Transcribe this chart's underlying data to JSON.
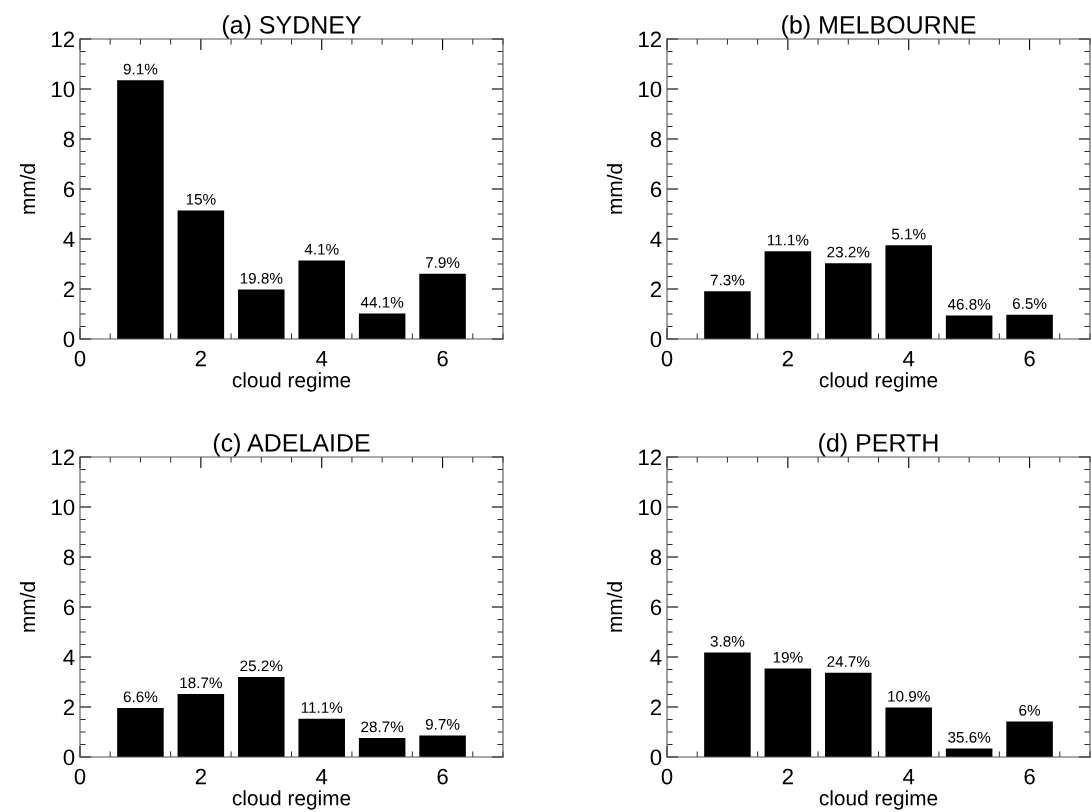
{
  "chart_data": [
    {
      "type": "bar",
      "title": "(a) SYDNEY",
      "xlabel": "cloud regime",
      "ylabel": "mm/d",
      "x": [
        1,
        2,
        3,
        4,
        5,
        6
      ],
      "xlim": [
        0,
        7
      ],
      "xticks": [
        0,
        2,
        4,
        6
      ],
      "ylim": [
        0,
        12
      ],
      "yticks": [
        0,
        2,
        4,
        6,
        8,
        10,
        12
      ],
      "color": "#000000",
      "grid": false,
      "legend": false,
      "values": [
        10.35,
        5.14,
        1.98,
        3.14,
        1.02,
        2.61
      ],
      "annotations": [
        {
          "text": "9.1%",
          "x": 1,
          "y": 10.35
        },
        {
          "text": "15%",
          "x": 2,
          "y": 5.14
        },
        {
          "text": "19.8%",
          "x": 3,
          "y": 1.98
        },
        {
          "text": "4.1%",
          "x": 4,
          "y": 3.14
        },
        {
          "text": "44.1%",
          "x": 5,
          "y": 1.02
        },
        {
          "text": "7.9%",
          "x": 6,
          "y": 2.61
        }
      ]
    },
    {
      "type": "bar",
      "title": "(b) MELBOURNE",
      "xlabel": "cloud regime",
      "ylabel": "mm/d",
      "x": [
        1,
        2,
        3,
        4,
        5,
        6
      ],
      "xlim": [
        0,
        7
      ],
      "xticks": [
        0,
        2,
        4,
        6
      ],
      "ylim": [
        0,
        12
      ],
      "yticks": [
        0,
        2,
        4,
        6,
        8,
        10,
        12
      ],
      "color": "#000000",
      "grid": false,
      "legend": false,
      "values": [
        1.91,
        3.51,
        3.03,
        3.75,
        0.94,
        0.97
      ],
      "annotations": [
        {
          "text": "7.3%",
          "x": 1,
          "y": 1.91
        },
        {
          "text": "11.1%",
          "x": 2,
          "y": 3.51
        },
        {
          "text": "23.2%",
          "x": 3,
          "y": 3.03
        },
        {
          "text": "5.1%",
          "x": 4,
          "y": 3.75
        },
        {
          "text": "46.8%",
          "x": 5,
          "y": 0.94
        },
        {
          "text": "6.5%",
          "x": 6,
          "y": 0.97
        }
      ]
    },
    {
      "type": "bar",
      "title": "(c) ADELAIDE",
      "xlabel": "cloud regime",
      "ylabel": "mm/d",
      "x": [
        1,
        2,
        3,
        4,
        5,
        6
      ],
      "xlim": [
        0,
        7
      ],
      "xticks": [
        0,
        2,
        4,
        6
      ],
      "ylim": [
        0,
        12
      ],
      "yticks": [
        0,
        2,
        4,
        6,
        8,
        10,
        12
      ],
      "color": "#000000",
      "grid": false,
      "legend": false,
      "values": [
        1.96,
        2.52,
        3.2,
        1.53,
        0.76,
        0.86
      ],
      "annotations": [
        {
          "text": "6.6%",
          "x": 1,
          "y": 1.96
        },
        {
          "text": "18.7%",
          "x": 2,
          "y": 2.52
        },
        {
          "text": "25.2%",
          "x": 3,
          "y": 3.2
        },
        {
          "text": "11.1%",
          "x": 4,
          "y": 1.53
        },
        {
          "text": "28.7%",
          "x": 5,
          "y": 0.76
        },
        {
          "text": "9.7%",
          "x": 6,
          "y": 0.86
        }
      ]
    },
    {
      "type": "bar",
      "title": "(d) PERTH",
      "xlabel": "cloud regime",
      "ylabel": "mm/d",
      "x": [
        1,
        2,
        3,
        4,
        5,
        6
      ],
      "xlim": [
        0,
        7
      ],
      "xticks": [
        0,
        2,
        4,
        6
      ],
      "ylim": [
        0,
        12
      ],
      "yticks": [
        0,
        2,
        4,
        6,
        8,
        10,
        12
      ],
      "color": "#000000",
      "grid": false,
      "legend": false,
      "values": [
        4.18,
        3.54,
        3.37,
        1.98,
        0.34,
        1.42
      ],
      "annotations": [
        {
          "text": "3.8%",
          "x": 1,
          "y": 4.18
        },
        {
          "text": "19%",
          "x": 2,
          "y": 3.54
        },
        {
          "text": "24.7%",
          "x": 3,
          "y": 3.37
        },
        {
          "text": "10.9%",
          "x": 4,
          "y": 1.98
        },
        {
          "text": "35.6%",
          "x": 5,
          "y": 0.34
        },
        {
          "text": "6%",
          "x": 6,
          "y": 1.42
        }
      ]
    }
  ]
}
